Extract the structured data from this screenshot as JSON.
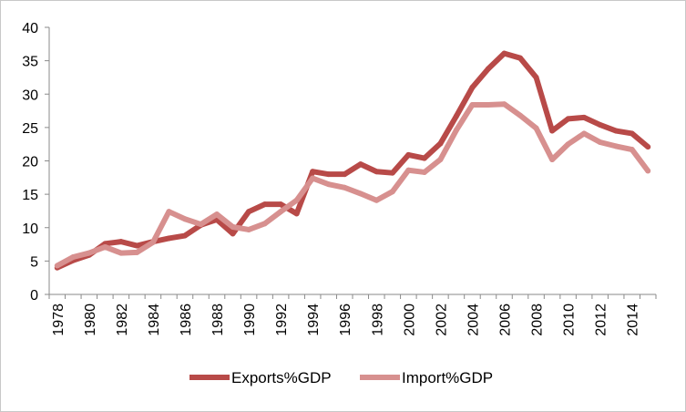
{
  "chart_data": {
    "type": "line",
    "title": "",
    "xlabel": "",
    "ylabel": "",
    "ylim": [
      0,
      40
    ],
    "yticks": [
      0,
      5,
      10,
      15,
      20,
      25,
      30,
      35,
      40
    ],
    "x": [
      1978,
      1979,
      1980,
      1981,
      1982,
      1983,
      1984,
      1985,
      1986,
      1987,
      1988,
      1989,
      1990,
      1991,
      1992,
      1993,
      1994,
      1995,
      1996,
      1997,
      1998,
      1999,
      2000,
      2001,
      2002,
      2003,
      2004,
      2005,
      2006,
      2007,
      2008,
      2009,
      2010,
      2011,
      2012,
      2013,
      2014,
      2015
    ],
    "xtick_labels": [
      "1978",
      "1980",
      "1982",
      "1984",
      "1986",
      "1988",
      "1990",
      "1992",
      "1994",
      "1996",
      "1998",
      "2000",
      "2002",
      "2004",
      "2006",
      "2008",
      "2010",
      "2012",
      "2014"
    ],
    "grid": false,
    "legend_position": "bottom",
    "series": [
      {
        "name": "Exports%GDP",
        "color": "#b84a48",
        "values": [
          4.0,
          5.1,
          5.9,
          7.6,
          7.9,
          7.3,
          7.9,
          8.4,
          8.8,
          10.4,
          11.2,
          9.1,
          12.4,
          13.5,
          13.5,
          12.1,
          18.4,
          18.0,
          18.0,
          19.5,
          18.4,
          18.2,
          20.9,
          20.4,
          22.6,
          26.7,
          31.0,
          33.8,
          36.1,
          35.4,
          32.5,
          24.5,
          26.3,
          26.5,
          25.4,
          24.5,
          24.1,
          22.1
        ]
      },
      {
        "name": "Import%GDP",
        "color": "#d7908f",
        "values": [
          4.3,
          5.6,
          6.2,
          7.1,
          6.2,
          6.3,
          7.8,
          12.4,
          11.3,
          10.5,
          12.0,
          10.1,
          9.7,
          10.6,
          12.4,
          14.1,
          17.4,
          16.5,
          16.0,
          15.1,
          14.1,
          15.4,
          18.6,
          18.3,
          20.2,
          24.6,
          28.4,
          28.4,
          28.5,
          26.8,
          24.9,
          20.2,
          22.5,
          24.1,
          22.8,
          22.2,
          21.7,
          18.5
        ]
      }
    ]
  }
}
